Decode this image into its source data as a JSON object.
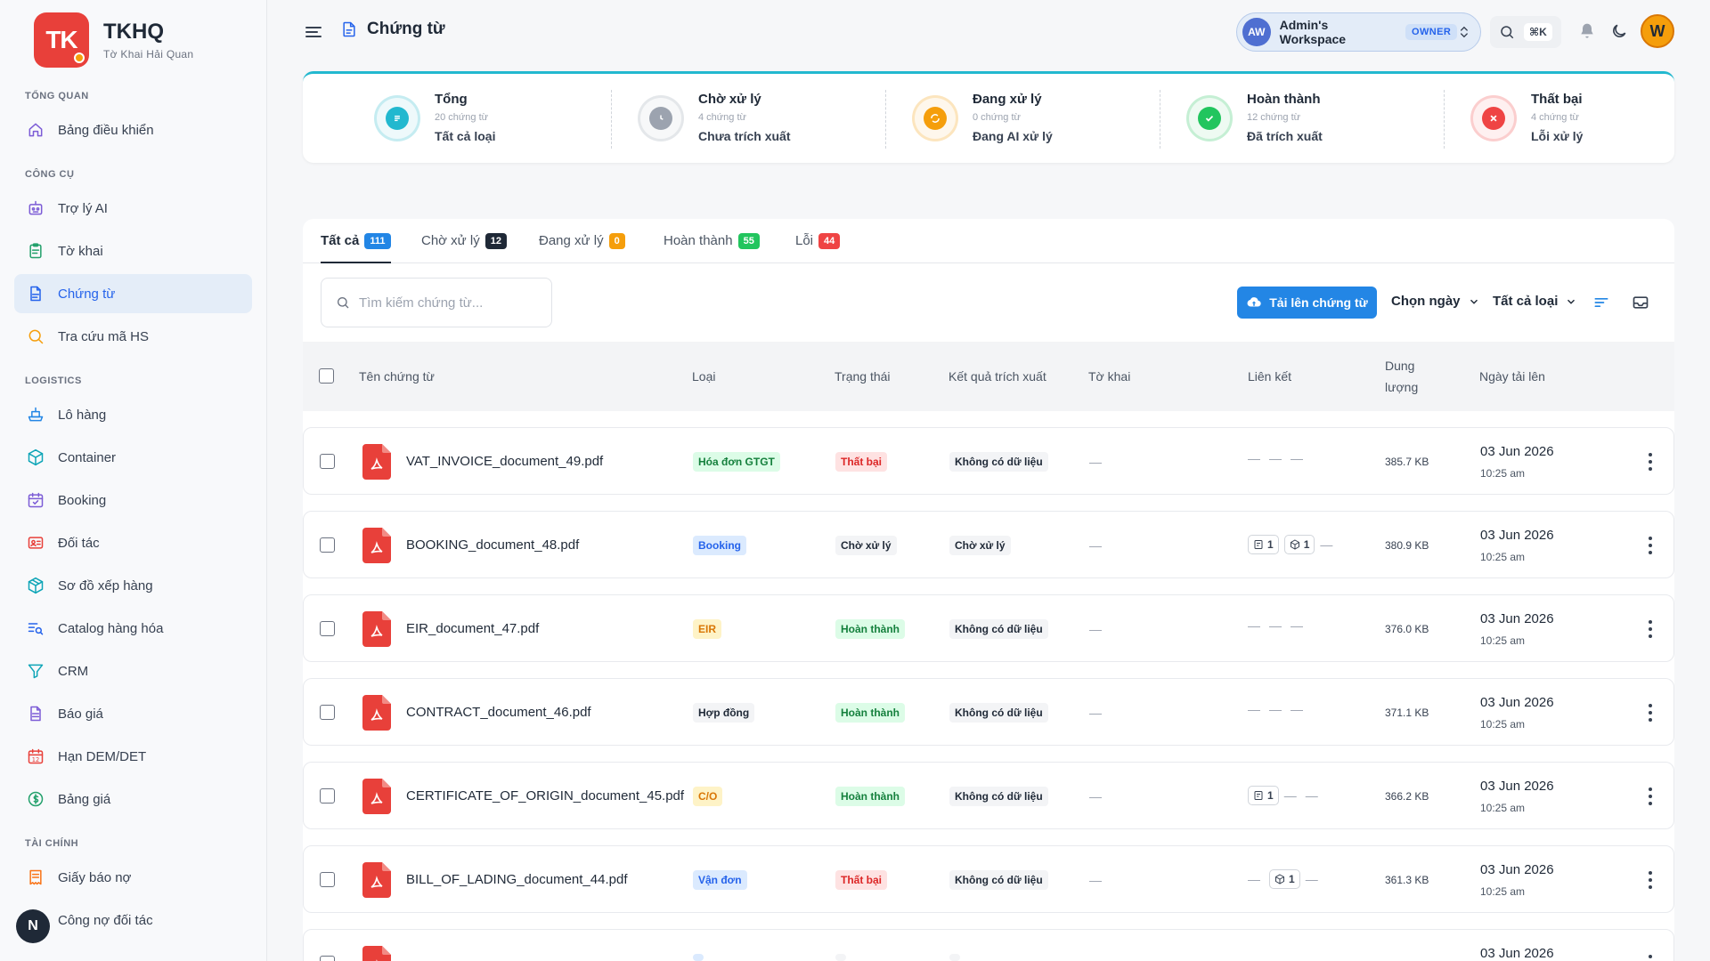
{
  "brand": {
    "logo": "TK",
    "title": "TKHQ",
    "subtitle": "Tờ Khai Hải Quan"
  },
  "sidebar": {
    "sections": [
      {
        "label": "TỔNG QUAN",
        "items": [
          {
            "label": "Bảng điều khiển",
            "icon": "home-icon"
          }
        ]
      },
      {
        "label": "CÔNG CỤ",
        "items": [
          {
            "label": "Trợ lý AI",
            "icon": "robot-icon"
          },
          {
            "label": "Tờ khai",
            "icon": "clipboard-icon"
          },
          {
            "label": "Chứng từ",
            "icon": "document-icon",
            "active": true
          },
          {
            "label": "Tra cứu mã HS",
            "icon": "search-icon"
          }
        ]
      },
      {
        "label": "LOGISTICS",
        "items": [
          {
            "label": "Lô hàng",
            "icon": "ship-icon"
          },
          {
            "label": "Container",
            "icon": "box-icon"
          },
          {
            "label": "Booking",
            "icon": "calendar-icon"
          },
          {
            "label": "Đối tác",
            "icon": "contact-card-icon"
          },
          {
            "label": "Sơ đồ xếp hàng",
            "icon": "package-icon"
          },
          {
            "label": "Catalog hàng hóa",
            "icon": "list-search-icon"
          },
          {
            "label": "CRM",
            "icon": "funnel-icon"
          },
          {
            "label": "Báo giá",
            "icon": "file-text-icon"
          },
          {
            "label": "Hạn DEM/DET",
            "icon": "calendar-12-icon"
          },
          {
            "label": "Bảng giá",
            "icon": "dollar-circle-icon"
          }
        ]
      },
      {
        "label": "TÀI CHÍNH",
        "items": [
          {
            "label": "Giấy báo nợ",
            "icon": "receipt-icon"
          },
          {
            "label": "Công nợ đối tác",
            "icon": "wallet-icon"
          }
        ]
      }
    ],
    "bottom_badge": "N"
  },
  "header": {
    "title": "Chứng từ",
    "workspace": {
      "initials": "AW",
      "name": "Admin's Workspace",
      "role": "OWNER"
    },
    "search_shortcut": "⌘K",
    "user_initial": "W"
  },
  "stats": [
    {
      "label": "Tổng",
      "count": "20 chứng từ",
      "desc": "Tất cả loại",
      "color": "#22b8cf"
    },
    {
      "label": "Chờ xử lý",
      "count": "4 chứng từ",
      "desc": "Chưa trích xuất",
      "color": "#9ca3af"
    },
    {
      "label": "Đang xử lý",
      "count": "0 chứng từ",
      "desc": "Đang AI xử lý",
      "color": "#f59e0b"
    },
    {
      "label": "Hoàn thành",
      "count": "12 chứng từ",
      "desc": "Đã trích xuất",
      "color": "#22c55e"
    },
    {
      "label": "Thất bại",
      "count": "4 chứng từ",
      "desc": "Lỗi xử lý",
      "color": "#ef4444"
    }
  ],
  "tabs": [
    {
      "label": "Tất cả",
      "count": "111",
      "color": "#2386e5",
      "active": true
    },
    {
      "label": "Chờ xử lý",
      "count": "12",
      "color": "#1f2937"
    },
    {
      "label": "Đang xử lý",
      "count": "0",
      "color": "#f59e0b"
    },
    {
      "label": "Hoàn thành",
      "count": "55",
      "color": "#22c55e"
    },
    {
      "label": "Lỗi",
      "count": "44",
      "color": "#ef4444"
    }
  ],
  "toolbar": {
    "search_placeholder": "Tìm kiếm chứng từ...",
    "upload_label": "Tải lên chứng từ",
    "date_filter": "Chọn ngày",
    "type_filter": "Tất cả loại"
  },
  "table": {
    "columns": {
      "name": "Tên chứng từ",
      "type": "Loại",
      "status": "Trạng thái",
      "extract": "Kết quả trích xuất",
      "declaration": "Tờ khai",
      "links": "Liên kết",
      "size_line1": "Dung",
      "size_line2": "lượng",
      "date": "Ngày tải lên"
    },
    "rows": [
      {
        "name": "VAT_INVOICE_document_49.pdf",
        "type": "Hóa đơn GTGT",
        "type_style": "green",
        "status": "Thất bại",
        "status_style": "red",
        "extract": "Không có dữ liệu",
        "declaration": "—",
        "links": {
          "doc": "",
          "box": ""
        },
        "size": "385.7 KB",
        "date": "03 Jun 2026",
        "time": "10:25 am"
      },
      {
        "name": "BOOKING_document_48.pdf",
        "type": "Booking",
        "type_style": "blue",
        "status": "Chờ xử lý",
        "status_style": "gray",
        "extract": "Chờ xử lý",
        "declaration": "—",
        "links": {
          "doc": "1",
          "box": "1"
        },
        "size": "380.9 KB",
        "date": "03 Jun 2026",
        "time": "10:25 am"
      },
      {
        "name": "EIR_document_47.pdf",
        "type": "EIR",
        "type_style": "orange",
        "status": "Hoàn thành",
        "status_style": "green",
        "extract": "Không có dữ liệu",
        "declaration": "—",
        "links": {
          "doc": "",
          "box": ""
        },
        "size": "376.0 KB",
        "date": "03 Jun 2026",
        "time": "10:25 am"
      },
      {
        "name": "CONTRACT_document_46.pdf",
        "type": "Hợp đồng",
        "type_style": "gray",
        "status": "Hoàn thành",
        "status_style": "green",
        "extract": "Không có dữ liệu",
        "declaration": "—",
        "links": {
          "doc": "",
          "box": ""
        },
        "size": "371.1 KB",
        "date": "03 Jun 2026",
        "time": "10:25 am"
      },
      {
        "name": "CERTIFICATE_OF_ORIGIN_document_45.pdf",
        "type": "C/O",
        "type_style": "orange",
        "status": "Hoàn thành",
        "status_style": "green",
        "extract": "Không có dữ liệu",
        "declaration": "—",
        "links": {
          "doc": "1",
          "box": ""
        },
        "size": "366.2 KB",
        "date": "03 Jun 2026",
        "time": "10:25 am"
      },
      {
        "name": "BILL_OF_LADING_document_44.pdf",
        "type": "Vận đơn",
        "type_style": "blue",
        "status": "Thất bại",
        "status_style": "red",
        "extract": "Không có dữ liệu",
        "declaration": "—",
        "links": {
          "doc": "",
          "box": "1"
        },
        "size": "361.3 KB",
        "date": "03 Jun 2026",
        "time": "10:25 am"
      },
      {
        "name": "",
        "type": "",
        "type_style": "blue",
        "status": "",
        "status_style": "gray",
        "extract": "",
        "declaration": "",
        "links": {
          "doc": "",
          "box": ""
        },
        "size": "",
        "date": "03 Jun 2026",
        "time": ""
      }
    ]
  }
}
